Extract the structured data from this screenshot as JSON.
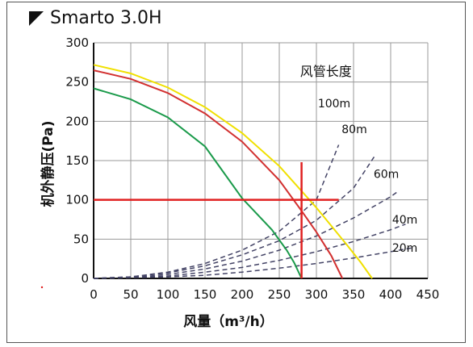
{
  "header": {
    "model": "Smarto 3.0H"
  },
  "chart_data": {
    "type": "line",
    "title": "Smarto 3.0H",
    "xlabel": "风量（m³/h）",
    "ylabel": "机外静压(Pa)",
    "xlim": [
      0,
      450
    ],
    "ylim": [
      0,
      300
    ],
    "xticks": [
      0,
      50,
      100,
      150,
      200,
      250,
      300,
      350,
      400,
      450
    ],
    "yticks": [
      0,
      50,
      100,
      150,
      200,
      250,
      300
    ],
    "grid": true,
    "legend_title": "风管长度",
    "fan_curves": [
      {
        "color": "#f0e000",
        "x": [
          0,
          50,
          100,
          150,
          200,
          250,
          300,
          340,
          360,
          375
        ],
        "y": [
          272,
          261,
          243,
          218,
          185,
          143,
          90,
          44,
          20,
          0
        ]
      },
      {
        "color": "#d23030",
        "x": [
          0,
          50,
          100,
          150,
          200,
          250,
          280,
          300,
          320,
          335
        ],
        "y": [
          265,
          254,
          236,
          210,
          174,
          125,
          86,
          59,
          29,
          0
        ]
      },
      {
        "color": "#1a9a4a",
        "x": [
          0,
          50,
          100,
          150,
          200,
          240,
          260,
          270,
          280
        ],
        "y": [
          242,
          228,
          205,
          168,
          102,
          62,
          36,
          20,
          0
        ]
      }
    ],
    "duct_curves": [
      {
        "name": "100m",
        "color": "#444466",
        "x": [
          0,
          50,
          100,
          150,
          200,
          250,
          300,
          330
        ],
        "y": [
          0,
          2,
          8,
          19,
          36,
          60,
          100,
          170
        ]
      },
      {
        "name": "80m",
        "color": "#444466",
        "x": [
          0,
          50,
          100,
          150,
          200,
          250,
          300,
          350,
          380
        ],
        "y": [
          0,
          2,
          7,
          16,
          30,
          48,
          74,
          115,
          158
        ]
      },
      {
        "name": "60m",
        "color": "#444466",
        "x": [
          0,
          50,
          100,
          150,
          200,
          250,
          300,
          350,
          400,
          410
        ],
        "y": [
          0,
          1,
          5,
          12,
          22,
          36,
          54,
          77,
          104,
          111
        ]
      },
      {
        "name": "40m",
        "color": "#444466",
        "x": [
          0,
          50,
          100,
          150,
          200,
          250,
          300,
          350,
          400,
          420
        ],
        "y": [
          0,
          1,
          3,
          8,
          14,
          23,
          34,
          47,
          62,
          69
        ]
      },
      {
        "name": "20m",
        "color": "#444466",
        "x": [
          0,
          50,
          100,
          150,
          200,
          250,
          300,
          350,
          400,
          430
        ],
        "y": [
          0,
          1,
          2,
          4,
          8,
          13,
          19,
          26,
          34,
          39
        ]
      }
    ],
    "marker_lines": {
      "color": "#e02020",
      "horizontal": {
        "y": 100,
        "x_from": 0,
        "x_to": 330
      },
      "vertical": {
        "x": 280,
        "y_from": 0,
        "y_to": 148
      }
    },
    "duct_label_points": [
      {
        "name": "100m",
        "x": 302,
        "y": 218
      },
      {
        "name": "80m",
        "x": 334,
        "y": 185
      },
      {
        "name": "60m",
        "x": 377,
        "y": 128
      },
      {
        "name": "40m",
        "x": 402,
        "y": 70
      },
      {
        "name": "20m",
        "x": 402,
        "y": 34
      }
    ],
    "legend_title_point": {
      "x": 278,
      "y": 258
    }
  }
}
